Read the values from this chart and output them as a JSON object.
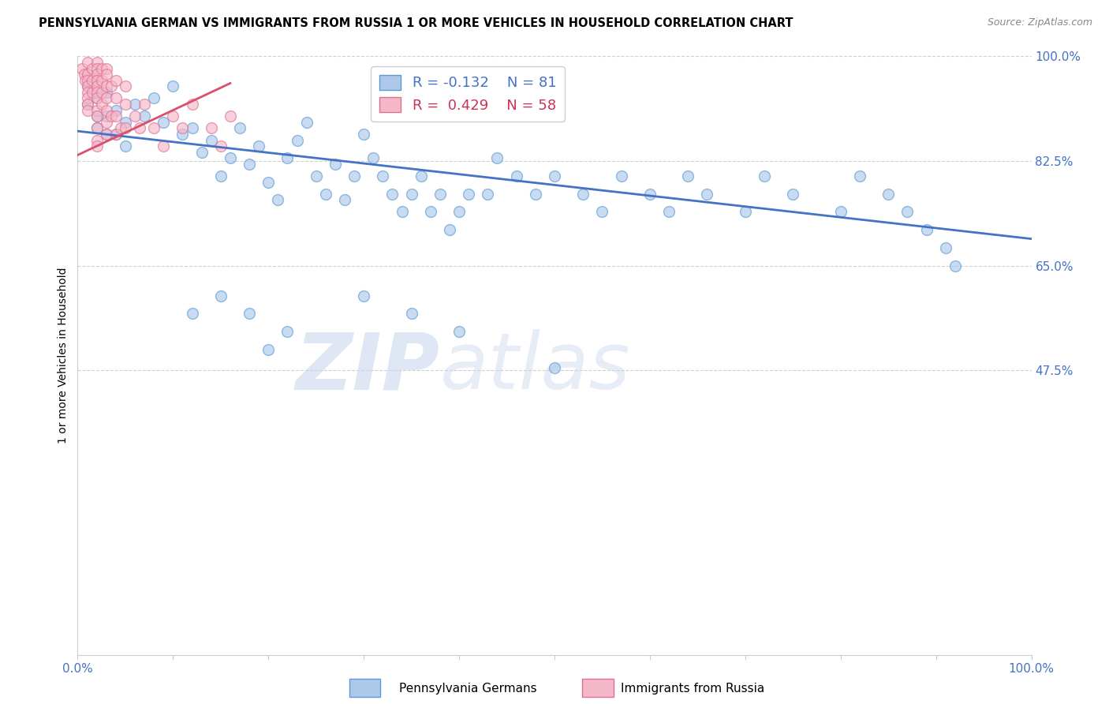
{
  "title": "PENNSYLVANIA GERMAN VS IMMIGRANTS FROM RUSSIA 1 OR MORE VEHICLES IN HOUSEHOLD CORRELATION CHART",
  "source": "Source: ZipAtlas.com",
  "ylabel": "1 or more Vehicles in Household",
  "xlim": [
    0.0,
    1.0
  ],
  "ylim": [
    0.0,
    1.0
  ],
  "blue_R": -0.132,
  "blue_N": 81,
  "pink_R": 0.429,
  "pink_N": 58,
  "blue_color": "#adc8e8",
  "pink_color": "#f5b8ca",
  "blue_edge_color": "#5b9bd5",
  "pink_edge_color": "#e07090",
  "blue_line_color": "#4472c4",
  "pink_line_color": "#d9506a",
  "legend_label_blue": "Pennsylvania Germans",
  "legend_label_pink": "Immigrants from Russia",
  "ytick_positions": [
    0.0,
    0.475,
    0.65,
    0.825,
    1.0
  ],
  "ytick_labels": [
    "",
    "47.5%",
    "65.0%",
    "82.5%",
    "100.0%"
  ],
  "blue_scatter_x": [
    0.01,
    0.01,
    0.01,
    0.02,
    0.02,
    0.02,
    0.02,
    0.03,
    0.03,
    0.03,
    0.04,
    0.04,
    0.05,
    0.05,
    0.06,
    0.07,
    0.08,
    0.09,
    0.1,
    0.11,
    0.12,
    0.13,
    0.14,
    0.15,
    0.16,
    0.17,
    0.18,
    0.19,
    0.2,
    0.21,
    0.22,
    0.23,
    0.24,
    0.25,
    0.26,
    0.27,
    0.28,
    0.29,
    0.3,
    0.31,
    0.32,
    0.33,
    0.34,
    0.35,
    0.36,
    0.37,
    0.38,
    0.39,
    0.4,
    0.41,
    0.43,
    0.44,
    0.46,
    0.48,
    0.5,
    0.53,
    0.55,
    0.57,
    0.6,
    0.62,
    0.64,
    0.66,
    0.7,
    0.72,
    0.75,
    0.8,
    0.82,
    0.85,
    0.87,
    0.89,
    0.91,
    0.92,
    0.12,
    0.15,
    0.18,
    0.22,
    0.2,
    0.3,
    0.35,
    0.4,
    0.5
  ],
  "blue_scatter_y": [
    0.97,
    0.95,
    0.92,
    0.96,
    0.93,
    0.9,
    0.88,
    0.94,
    0.9,
    0.87,
    0.91,
    0.87,
    0.89,
    0.85,
    0.92,
    0.9,
    0.93,
    0.89,
    0.95,
    0.87,
    0.88,
    0.84,
    0.86,
    0.8,
    0.83,
    0.88,
    0.82,
    0.85,
    0.79,
    0.76,
    0.83,
    0.86,
    0.89,
    0.8,
    0.77,
    0.82,
    0.76,
    0.8,
    0.87,
    0.83,
    0.8,
    0.77,
    0.74,
    0.77,
    0.8,
    0.74,
    0.77,
    0.71,
    0.74,
    0.77,
    0.77,
    0.83,
    0.8,
    0.77,
    0.8,
    0.77,
    0.74,
    0.8,
    0.77,
    0.74,
    0.8,
    0.77,
    0.74,
    0.8,
    0.77,
    0.74,
    0.8,
    0.77,
    0.74,
    0.71,
    0.68,
    0.65,
    0.57,
    0.6,
    0.57,
    0.54,
    0.51,
    0.6,
    0.57,
    0.54,
    0.48
  ],
  "pink_scatter_x": [
    0.005,
    0.007,
    0.008,
    0.01,
    0.01,
    0.01,
    0.01,
    0.01,
    0.01,
    0.01,
    0.01,
    0.015,
    0.015,
    0.015,
    0.02,
    0.02,
    0.02,
    0.02,
    0.02,
    0.02,
    0.02,
    0.02,
    0.02,
    0.02,
    0.02,
    0.02,
    0.025,
    0.025,
    0.025,
    0.025,
    0.03,
    0.03,
    0.03,
    0.03,
    0.03,
    0.03,
    0.03,
    0.035,
    0.035,
    0.04,
    0.04,
    0.04,
    0.04,
    0.045,
    0.05,
    0.05,
    0.05,
    0.06,
    0.065,
    0.07,
    0.08,
    0.09,
    0.1,
    0.11,
    0.12,
    0.14,
    0.15,
    0.16
  ],
  "pink_scatter_y": [
    0.98,
    0.97,
    0.96,
    0.99,
    0.97,
    0.96,
    0.95,
    0.94,
    0.93,
    0.92,
    0.91,
    0.98,
    0.96,
    0.94,
    0.99,
    0.98,
    0.97,
    0.96,
    0.95,
    0.94,
    0.93,
    0.91,
    0.9,
    0.88,
    0.86,
    0.85,
    0.98,
    0.96,
    0.94,
    0.92,
    0.98,
    0.97,
    0.95,
    0.93,
    0.91,
    0.89,
    0.87,
    0.95,
    0.9,
    0.96,
    0.93,
    0.9,
    0.87,
    0.88,
    0.95,
    0.92,
    0.88,
    0.9,
    0.88,
    0.92,
    0.88,
    0.85,
    0.9,
    0.88,
    0.92,
    0.88,
    0.85,
    0.9
  ],
  "blue_trendline": [
    0.0,
    1.0,
    0.875,
    0.695
  ],
  "pink_trendline": [
    0.0,
    0.16,
    0.835,
    0.955
  ],
  "watermark_zip": "ZIP",
  "watermark_atlas": "atlas",
  "background_color": "#ffffff",
  "grid_color": "#d0d0d0",
  "title_fontsize": 10.5,
  "source_fontsize": 9,
  "tick_fontsize": 11,
  "scatter_size": 100,
  "scatter_alpha": 0.65,
  "scatter_lw": 1.0
}
